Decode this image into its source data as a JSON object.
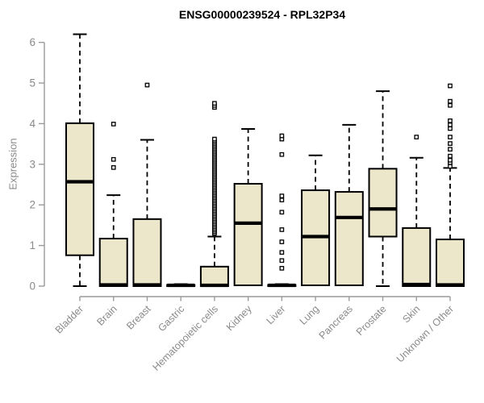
{
  "title": "ENSG00000239524 - RPL32P34",
  "y_axis": {
    "label": "Expression",
    "ticks": [
      0,
      1,
      2,
      3,
      4,
      5,
      6
    ],
    "min": 0,
    "max": 6
  },
  "colors": {
    "box_fill": "#ECE7CB",
    "box_border": "#000000",
    "median": "#000000",
    "whisker": "#000000",
    "outlier_stroke": "#000000",
    "axis": "#9a9a9a",
    "tick_label": "#8a8a8a",
    "title": "#000000",
    "background": "#ffffff"
  },
  "chart_data": {
    "type": "boxplot",
    "title": "ENSG00000239524 - RPL32P34",
    "xlabel": "",
    "ylabel": "Expression",
    "ylim": [
      0,
      6.3
    ],
    "yticks": [
      0,
      1,
      2,
      3,
      4,
      5,
      6
    ],
    "grid": false,
    "legend": false,
    "categories": [
      "Bladder",
      "Brain",
      "Breast",
      "Gastric",
      "Hematopoietic cells",
      "Kidney",
      "Liver",
      "Lung",
      "Pancreas",
      "Prostate",
      "Skin",
      "Unknown / Other"
    ],
    "series": [
      {
        "label": "Bladder",
        "min": 0,
        "q1": 0.76,
        "median": 2.57,
        "q3": 4.01,
        "max": 6.2,
        "outliers": []
      },
      {
        "label": "Brain",
        "min": 0,
        "q1": 0,
        "median": 0.03,
        "q3": 1.17,
        "max": 2.24,
        "outliers": [
          2.92,
          3.12,
          3.99
        ]
      },
      {
        "label": "Breast",
        "min": 0,
        "q1": 0,
        "median": 0.03,
        "q3": 1.65,
        "max": 3.6,
        "outliers": [
          4.95
        ]
      },
      {
        "label": "Gastric",
        "min": 0,
        "q1": 0,
        "median": 0.02,
        "q3": 0.03,
        "max": 0.05,
        "outliers": []
      },
      {
        "label": "Hematopoietic cells",
        "min": 0,
        "q1": 0,
        "median": 0.02,
        "q3": 0.48,
        "max": 1.22,
        "outliers": [
          1.3,
          1.34,
          1.38,
          1.42,
          1.46,
          1.5,
          1.54,
          1.58,
          1.62,
          1.66,
          1.7,
          1.74,
          1.78,
          1.82,
          1.86,
          1.9,
          1.94,
          1.98,
          2.02,
          2.06,
          2.1,
          2.14,
          2.18,
          2.22,
          2.26,
          2.3,
          2.34,
          2.38,
          2.42,
          2.46,
          2.5,
          2.54,
          2.58,
          2.62,
          2.66,
          2.7,
          2.74,
          2.78,
          2.82,
          2.86,
          2.9,
          2.94,
          2.98,
          3.02,
          3.06,
          3.1,
          3.14,
          3.18,
          3.22,
          3.26,
          3.3,
          3.34,
          3.38,
          3.42,
          3.46,
          3.5,
          3.54,
          3.58,
          3.62,
          4.4,
          4.45,
          4.5
        ]
      },
      {
        "label": "Kidney",
        "min": 0.02,
        "q1": 0.02,
        "median": 1.55,
        "q3": 2.52,
        "max": 3.87,
        "outliers": []
      },
      {
        "label": "Liver",
        "min": 0,
        "q1": 0,
        "median": 0.02,
        "q3": 0.03,
        "max": 0.05,
        "outliers": [
          0.44,
          0.63,
          0.83,
          1.09,
          1.39,
          1.82,
          2.12,
          2.22,
          3.24,
          3.62,
          3.7
        ]
      },
      {
        "label": "Lung",
        "min": 0.02,
        "q1": 0.02,
        "median": 1.22,
        "q3": 2.36,
        "max": 3.22,
        "outliers": []
      },
      {
        "label": "Pancreas",
        "min": 0.02,
        "q1": 0.02,
        "median": 1.69,
        "q3": 2.32,
        "max": 3.97,
        "outliers": []
      },
      {
        "label": "Prostate",
        "min": 0,
        "q1": 1.22,
        "median": 1.9,
        "q3": 2.89,
        "max": 4.8,
        "outliers": []
      },
      {
        "label": "Skin",
        "min": 0,
        "q1": 0,
        "median": 0.04,
        "q3": 1.43,
        "max": 3.16,
        "outliers": [
          3.67
        ]
      },
      {
        "label": "Unknown / Other",
        "min": 0,
        "q1": 0,
        "median": 0.03,
        "q3": 1.15,
        "max": 2.91,
        "outliers": [
          2.95,
          3.04,
          3.1,
          3.2,
          3.37,
          3.51,
          3.67,
          3.88,
          3.97,
          4.07,
          4.45,
          4.55,
          4.93
        ]
      }
    ]
  }
}
